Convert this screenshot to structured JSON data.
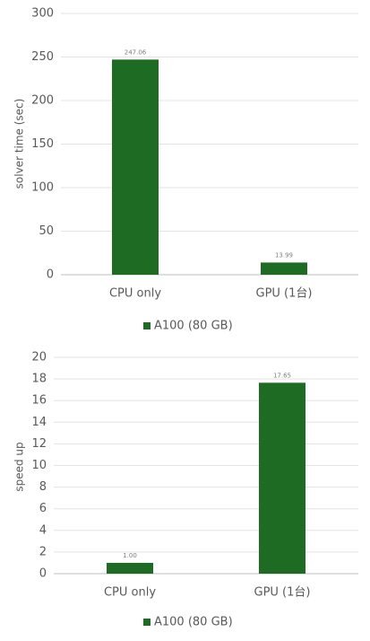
{
  "chart_data": [
    {
      "type": "bar",
      "ylabel": "solver time (sec)",
      "categories": [
        "CPU only",
        "GPU (1台)"
      ],
      "series": [
        {
          "name": "A100 (80 GB)",
          "color": "#1e6b24",
          "values": [
            247.06,
            13.99
          ]
        }
      ],
      "ylim": [
        0,
        300
      ],
      "yticks": [
        0,
        50,
        100,
        150,
        200,
        250,
        300
      ],
      "grid": true
    },
    {
      "type": "bar",
      "ylabel": "speed up",
      "categories": [
        "CPU only",
        "GPU (1台)"
      ],
      "series": [
        {
          "name": "A100 (80 GB)",
          "color": "#1e6b24",
          "values": [
            1,
            17.65
          ],
          "value_labels": [
            "1.00",
            "17.65"
          ]
        }
      ],
      "ylim": [
        0,
        20
      ],
      "yticks": [
        0,
        2,
        4,
        6,
        8,
        10,
        12,
        14,
        16,
        18,
        20
      ],
      "grid": true
    }
  ]
}
